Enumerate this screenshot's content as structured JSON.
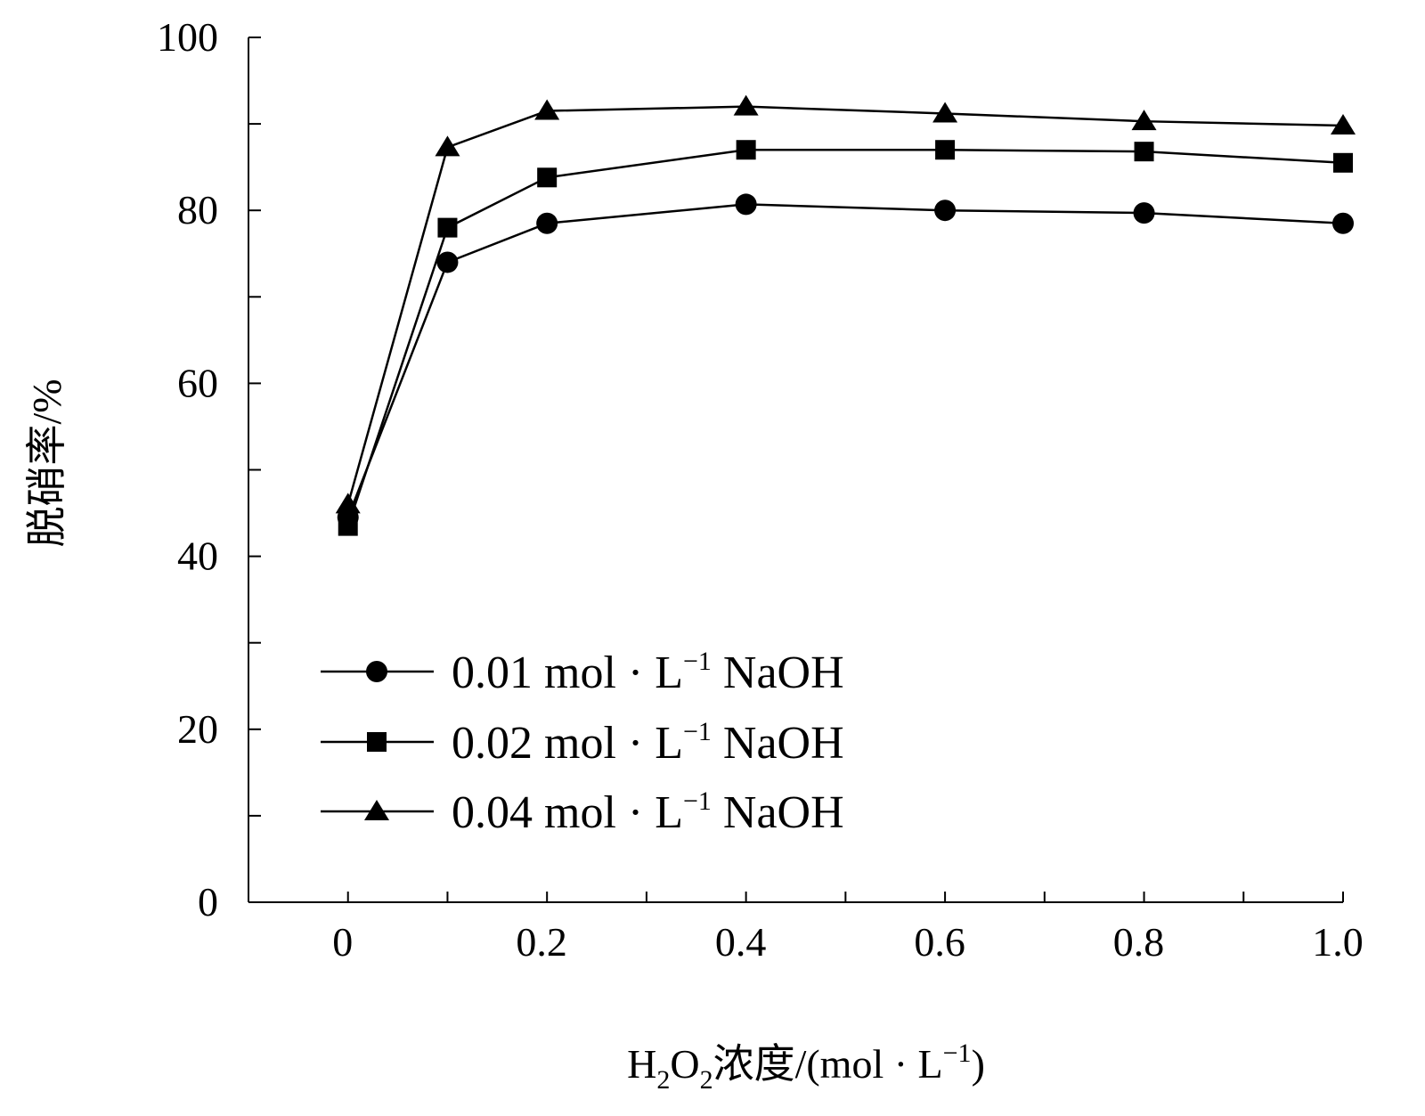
{
  "chart_data": {
    "type": "line",
    "x": [
      0,
      0.1,
      0.2,
      0.4,
      0.6,
      0.8,
      1.0
    ],
    "xlim": [
      -0.1,
      1.0
    ],
    "ylim": [
      0,
      100
    ],
    "xticks": [
      0,
      0.2,
      0.4,
      0.6,
      0.8,
      1.0
    ],
    "xtick_labels": [
      "0",
      "0.2",
      "0.4",
      "0.6",
      "0.8",
      "1.0"
    ],
    "yticks": [
      0,
      20,
      40,
      60,
      80,
      100
    ],
    "ytick_labels": [
      "0",
      "20",
      "40",
      "60",
      "80",
      "100"
    ],
    "xminor_step": 0.1,
    "yminor_step": 10,
    "grid": false,
    "legend_position": "bottom-left",
    "xlabel": {
      "p1": "H",
      "sub1": "2",
      "p2": "O",
      "sub2": "2",
      "p3": "浓度/(mol · L",
      "sup": "−1",
      "p4": ")"
    },
    "ylabel": "脱硝率/%",
    "series": [
      {
        "marker": "circle",
        "name": {
          "main": "0.01 mol · L",
          "sup": "−1",
          "tail": " NaOH"
        },
        "values": [
          44.5,
          74,
          78.5,
          80.7,
          80,
          79.7,
          78.5
        ]
      },
      {
        "marker": "square",
        "name": {
          "main": "0.02 mol · L",
          "sup": "−1",
          "tail": " NaOH"
        },
        "values": [
          43.5,
          78,
          83.8,
          87,
          87,
          86.8,
          85.5
        ]
      },
      {
        "marker": "triangle",
        "name": {
          "main": "0.04 mol · L",
          "sup": "−1",
          "tail": " NaOH"
        },
        "values": [
          46,
          87.3,
          91.5,
          92,
          91.2,
          90.3,
          89.8
        ]
      }
    ]
  }
}
